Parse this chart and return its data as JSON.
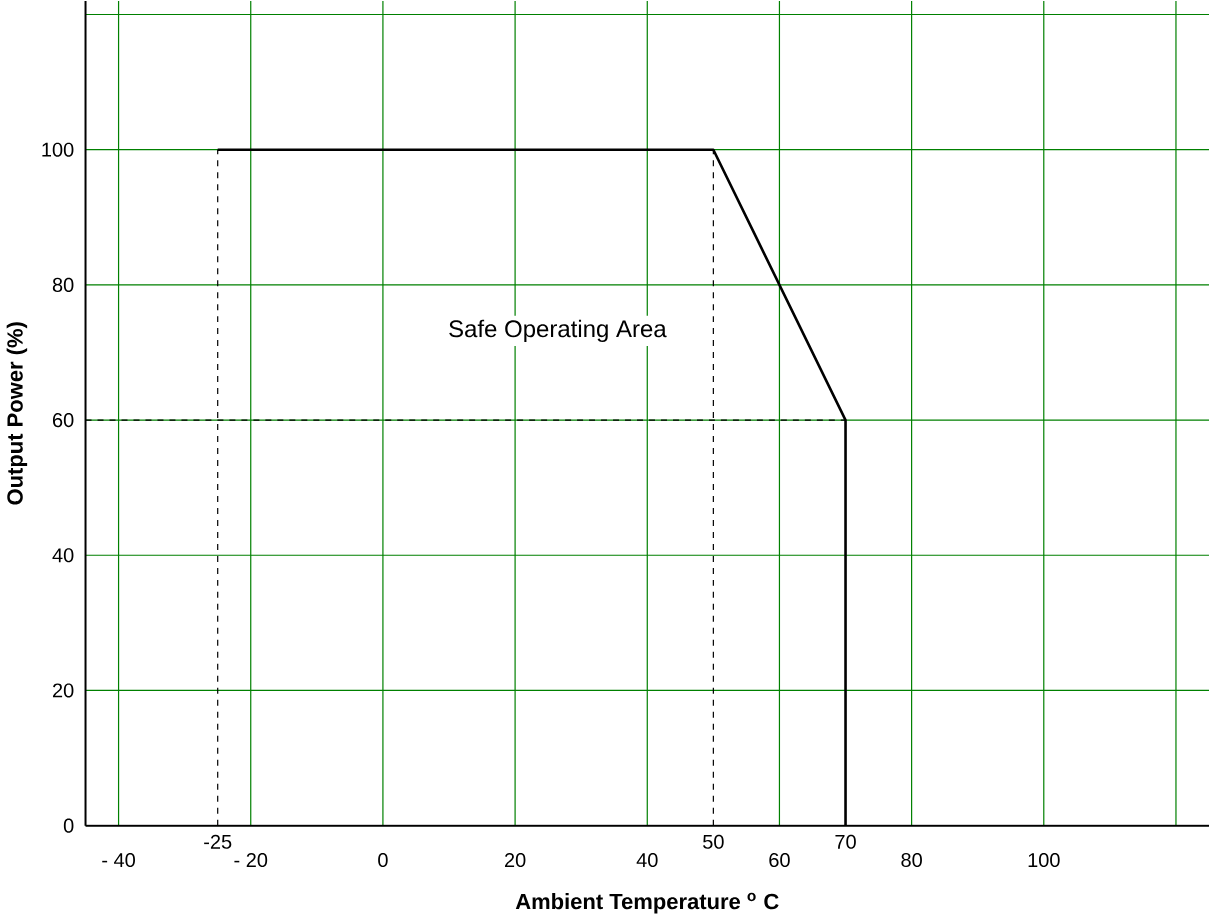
{
  "chart_data": {
    "type": "line",
    "xlabel": "Ambient Temperature $^{o}$ C",
    "ylabel": "Output Power (%)",
    "xlim": [
      -45,
      125
    ],
    "ylim": [
      0,
      122
    ],
    "xticks": [
      {
        "value": -40,
        "label": "- 40"
      },
      {
        "value": -20,
        "label": "- 20"
      },
      0,
      20,
      40,
      60,
      80,
      100,
      {
        "value": 120,
        "label": null
      }
    ],
    "yticks": [
      0,
      20,
      40,
      60,
      80,
      100,
      {
        "value": 120,
        "label": null
      }
    ],
    "grid": true,
    "marker": "none",
    "series": [
      {
        "x": [
          -25,
          50,
          70,
          70
        ],
        "values": [
          100,
          100,
          60,
          0
        ],
        "color": "#000000",
        "line_style": "solid"
      },
      {
        "x": [
          -25,
          -25
        ],
        "values": [
          0,
          100
        ],
        "color": "#000000",
        "line_style": "dashed"
      },
      {
        "x": [
          50,
          50
        ],
        "values": [
          0,
          100
        ],
        "color": "#000000",
        "line_style": "dashed"
      },
      {
        "x": [
          -45,
          70
        ],
        "values": [
          60,
          60
        ],
        "color": "#000000",
        "line_style": "dashed"
      }
    ],
    "annotations": [
      "Safe Operating Area",
      {
        "text": "-25",
        "x": -25,
        "y": 0
      },
      {
        "text": "50",
        "x": 50,
        "y": 0
      },
      {
        "text": "70",
        "x": 70,
        "y": 0
      }
    ]
  }
}
